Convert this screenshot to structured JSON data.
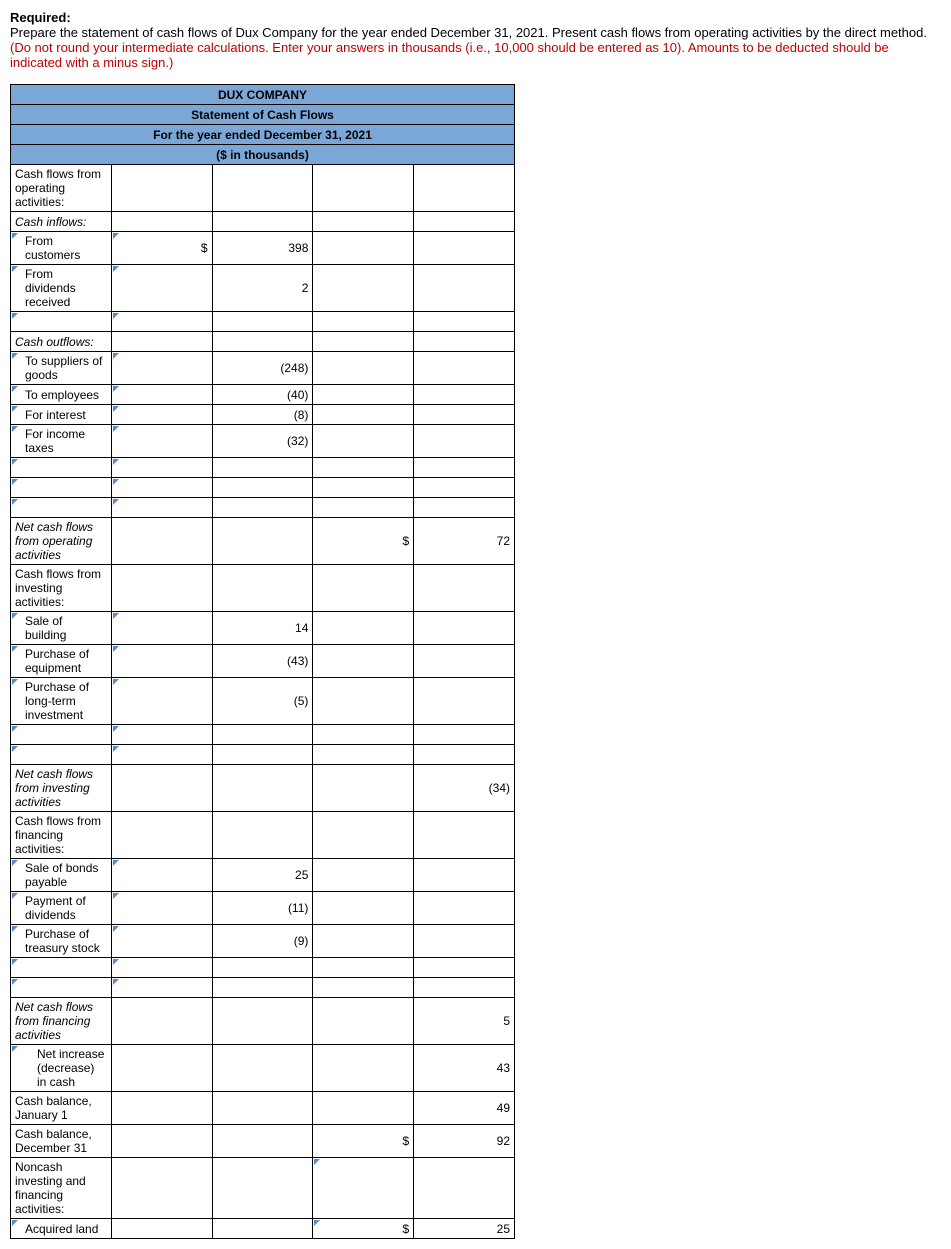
{
  "instructions": {
    "title": "Required:",
    "line1": "Prepare the statement of cash flows of Dux Company for the year ended December 31, 2021. Present cash flows from operating activities by the direct method. ",
    "line_red": "(Do not round your intermediate calculations. Enter your answers in thousands (i.e., 10,000 should be entered as 10). Amounts to be deducted should be indicated with a minus sign.)"
  },
  "header": {
    "h1": "DUX COMPANY",
    "h2": "Statement of Cash Flows",
    "h3": "For the year ended December 31, 2021",
    "h4": "($ in thousands)"
  },
  "labels": {
    "op_header": "Cash flows from operating activities:",
    "inflows": "Cash inflows:",
    "from_customers": "From customers",
    "from_dividends": "From dividends received",
    "outflows": "Cash outflows:",
    "to_suppliers": "To suppliers of goods",
    "to_employees": "To employees",
    "for_interest": "For interest",
    "for_taxes": "For income taxes",
    "net_op": "Net cash flows from operating activities",
    "inv_header": "Cash flows from investing activities:",
    "sale_building": "Sale of building",
    "purchase_equipment": "Purchase of equipment",
    "purchase_lti": "Purchase of long-term investment",
    "net_inv": "Net cash flows from investing activities",
    "fin_header": "Cash flows from financing activities:",
    "sale_bonds": "Sale of bonds payable",
    "pay_dividends": "Payment of dividends",
    "purchase_treasury": "Purchase of treasury stock",
    "net_fin": "Net cash flows from financing activities",
    "net_change": "Net increase (decrease) in cash",
    "cash_jan1": "Cash balance, January 1",
    "cash_dec31": "Cash balance, December 31",
    "noncash": "Noncash investing and financing activities:",
    "acq_land": "Acquired land"
  },
  "values": {
    "from_customers": "398",
    "from_dividends": "2",
    "to_suppliers": "(248)",
    "to_employees": "(40)",
    "for_interest": "(8)",
    "for_taxes": "(32)",
    "net_op": "72",
    "sale_building": "14",
    "purchase_equipment": "(43)",
    "purchase_lti": "(5)",
    "net_inv": "(34)",
    "sale_bonds": "25",
    "pay_dividends": "(11)",
    "purchase_treasury": "(9)",
    "net_fin": "5",
    "net_change": "43",
    "cash_jan1": "49",
    "cash_dec31": "92",
    "acq_land": "25"
  },
  "currency": "$"
}
